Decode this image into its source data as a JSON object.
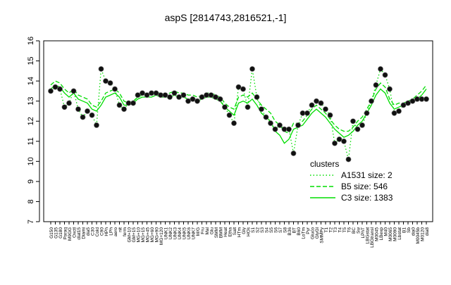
{
  "chart_data": {
    "type": "line",
    "title": "aspS [2814743,2816521,-1]",
    "xlabel": "",
    "ylabel": "",
    "ylim": [
      7,
      16
    ],
    "y_ticks": [
      7,
      8,
      9,
      10,
      11,
      12,
      13,
      14,
      15,
      16
    ],
    "x_tick_labels": [
      "G150",
      "G135",
      "G180",
      "Paraq",
      "M9GG",
      "Oxctl",
      "dlat15",
      "Diami",
      "dia5",
      "C30",
      "Cold",
      "C90",
      "HPh",
      "LPh",
      "aero",
      "nit",
      "ferm",
      "GM+10",
      "GM+15",
      "MG+10",
      "MG+15",
      "MG+45",
      "MG+60",
      "MG+90",
      "MG+120",
      "UNK1",
      "UNK2",
      "UNK3",
      "UNK4",
      "UNK5",
      "UNK6",
      "UNK7",
      "M/G",
      "Fru",
      "Mal",
      "Glu",
      "SMM",
      "BMM",
      "Heat",
      "Etha",
      "Salt",
      "HTm",
      "Gly",
      "HOs",
      "S1",
      "S2",
      "S3",
      "S4",
      "S5",
      "S6",
      "S7",
      "S8",
      "B36",
      "BT",
      "B60",
      "LoTm",
      "Pyr",
      "Gluco",
      "GlyGl",
      "SMMPy",
      "T1",
      "T2",
      "T3",
      "T4",
      "T5",
      "T6",
      "BC",
      "Sw",
      "LPhT",
      "LBGstat",
      "LBGtransl",
      "M0045",
      "LBexp",
      "M40",
      "M0065",
      "M0090",
      "Lbstat",
      "B1",
      "Sb",
      "dia0",
      "M0045b",
      "M0120",
      "dia8"
    ],
    "legend": {
      "title": "clusters",
      "placement": "right",
      "entries": [
        {
          "name": "A1531 size: 2",
          "style": "dotted"
        },
        {
          "name": "B5 size: 546",
          "style": "dashed"
        },
        {
          "name": "C3 size: 1383",
          "style": "solid"
        }
      ]
    },
    "color": "#00dd00",
    "series": [
      {
        "name": "B5 size: 546",
        "style": "dashed",
        "values": [
          13.8,
          14.0,
          13.9,
          13.6,
          13.4,
          13.6,
          13.3,
          13.2,
          13.1,
          12.8,
          12.7,
          13.0,
          13.4,
          13.5,
          13.6,
          13.4,
          13.0,
          12.9,
          13.0,
          13.2,
          13.3,
          13.3,
          13.4,
          13.4,
          13.4,
          13.3,
          13.4,
          13.5,
          13.4,
          13.4,
          13.3,
          13.3,
          13.2,
          13.3,
          13.4,
          13.4,
          13.3,
          13.2,
          12.9,
          12.7,
          12.6,
          13.2,
          13.3,
          13.2,
          13.4,
          13.1,
          12.8,
          12.6,
          12.4,
          12.0,
          11.8,
          11.5,
          11.4,
          11.9,
          11.9,
          12.0,
          12.3,
          12.6,
          12.8,
          12.6,
          12.4,
          12.1,
          11.8,
          11.6,
          11.5,
          11.5,
          11.7,
          12.0,
          12.2,
          12.6,
          13.0,
          13.6,
          13.9,
          13.7,
          13.1,
          12.8,
          12.9,
          12.9,
          13.0,
          13.1,
          13.3,
          13.5,
          13.8
        ]
      },
      {
        "name": "C3 size: 1383",
        "style": "solid",
        "values": [
          13.6,
          13.8,
          13.7,
          13.4,
          13.2,
          13.4,
          13.1,
          13.0,
          12.9,
          12.6,
          12.5,
          12.8,
          13.2,
          13.3,
          13.4,
          13.2,
          12.8,
          12.8,
          12.9,
          13.1,
          13.2,
          13.2,
          13.2,
          13.3,
          13.2,
          13.2,
          13.2,
          13.3,
          13.2,
          13.2,
          13.1,
          13.1,
          13.0,
          13.1,
          13.2,
          13.2,
          13.1,
          13.0,
          12.7,
          12.5,
          12.3,
          12.9,
          13.0,
          12.9,
          13.1,
          12.8,
          12.4,
          12.2,
          12.0,
          11.5,
          11.3,
          10.9,
          11.1,
          11.6,
          11.7,
          11.8,
          12.1,
          12.4,
          12.6,
          12.4,
          12.2,
          11.9,
          11.6,
          11.4,
          11.2,
          11.3,
          11.5,
          11.8,
          12.0,
          12.4,
          12.8,
          13.3,
          13.6,
          13.4,
          12.9,
          12.6,
          12.7,
          12.8,
          12.9,
          13.0,
          13.1,
          13.3,
          13.6
        ]
      },
      {
        "name": "A1531 size: 2",
        "style": "dotted",
        "values": [
          13.5,
          13.7,
          13.6,
          12.7,
          12.9,
          13.5,
          12.6,
          12.2,
          12.5,
          12.3,
          11.8,
          14.6,
          14.0,
          13.9,
          13.6,
          12.8,
          12.6,
          12.9,
          12.9,
          13.3,
          13.4,
          13.3,
          13.4,
          13.4,
          13.3,
          13.3,
          13.2,
          13.4,
          13.2,
          13.3,
          13.0,
          13.1,
          13.0,
          13.2,
          13.3,
          13.3,
          13.2,
          13.1,
          12.7,
          12.3,
          11.9,
          13.7,
          13.6,
          12.7,
          14.6,
          13.2,
          12.6,
          12.2,
          11.9,
          11.6,
          11.8,
          11.6,
          11.6,
          10.4,
          11.8,
          12.4,
          12.4,
          12.8,
          13.0,
          12.9,
          12.6,
          12.3,
          10.9,
          11.1,
          11.0,
          10.1,
          12.0,
          11.6,
          11.8,
          12.4,
          13.0,
          13.8,
          14.6,
          14.3,
          13.6,
          12.4,
          12.5,
          12.8,
          12.9,
          13.0,
          13.1,
          13.1,
          13.1
        ]
      }
    ]
  }
}
